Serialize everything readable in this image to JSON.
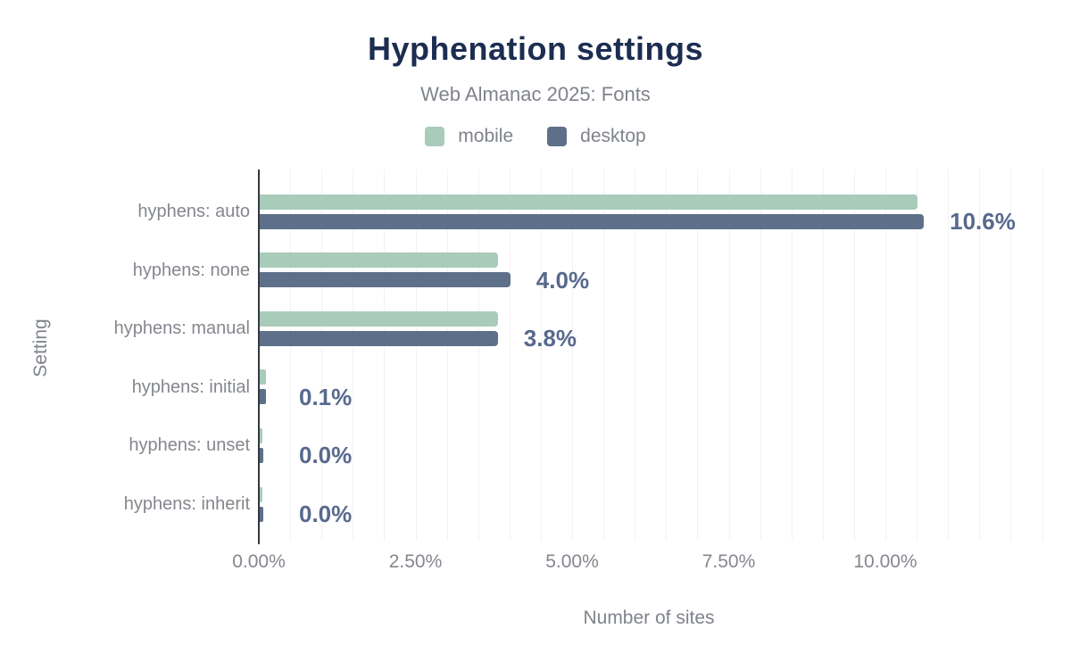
{
  "chart_data": {
    "type": "bar",
    "orientation": "horizontal",
    "title": "Hyphenation settings",
    "subtitle": "Web Almanac 2025: Fonts",
    "xlabel": "Number of sites",
    "ylabel": "Setting",
    "categories": [
      "hyphens: auto",
      "hyphens: none",
      "hyphens: manual",
      "hyphens: initial",
      "hyphens: unset",
      "hyphens: inherit"
    ],
    "series": [
      {
        "name": "mobile",
        "color": "#a9cbba",
        "values": [
          10.5,
          3.8,
          3.8,
          0.1,
          0.0,
          0.0
        ]
      },
      {
        "name": "desktop",
        "color": "#5e7089",
        "values": [
          10.6,
          4.0,
          3.8,
          0.1,
          0.0,
          0.0
        ]
      }
    ],
    "data_labels": [
      "10.6%",
      "4.0%",
      "3.8%",
      "0.1%",
      "0.0%",
      "0.0%"
    ],
    "x_ticks": [
      {
        "label": "0.00%",
        "value": 0
      },
      {
        "label": "2.50%",
        "value": 2.5
      },
      {
        "label": "5.00%",
        "value": 5
      },
      {
        "label": "7.50%",
        "value": 7.5
      },
      {
        "label": "10.00%",
        "value": 10
      }
    ],
    "xlim": [
      0,
      12.5
    ],
    "grid_step": 0.5,
    "grid": true,
    "legend_position": "top"
  },
  "colors": {
    "title": "#1c2d51",
    "subtitle": "#7f838b",
    "axis_text": "#84878d",
    "data_label": "#57698d",
    "gridline": "#f1f2f3",
    "axis_line": "#34393f"
  }
}
